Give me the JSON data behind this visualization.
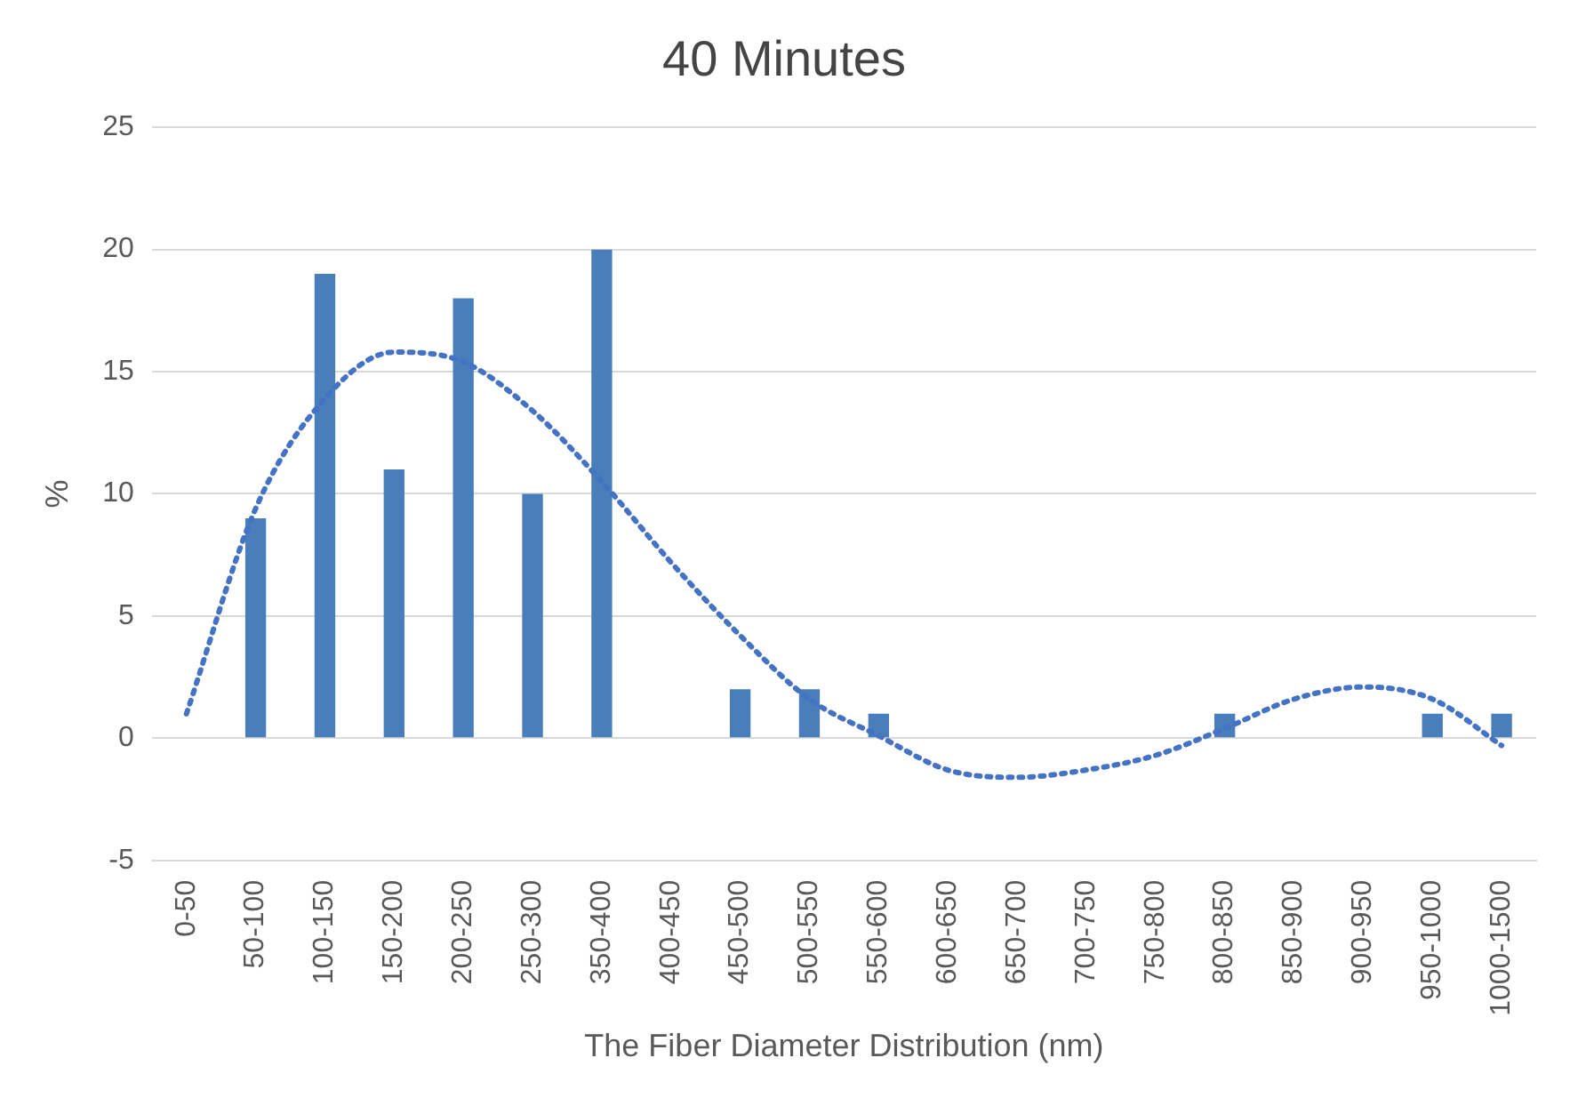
{
  "chart_data": {
    "type": "bar",
    "title": "40 Minutes",
    "xlabel": "The Fiber Diameter Distribution (nm)",
    "ylabel": "%",
    "categories": [
      "0-50",
      "50-100",
      "100-150",
      "150-200",
      "200-250",
      "250-300",
      "350-400",
      "400-450",
      "450-500",
      "500-550",
      "550-600",
      "600-650",
      "650-700",
      "700-750",
      "750-800",
      "800-850",
      "850-900",
      "900-950",
      "950-1000",
      "1000-1500"
    ],
    "series": [
      {
        "color": "#4a7ebb",
        "values": [
          0,
          9,
          19,
          11,
          18,
          10,
          20,
          0,
          2,
          2,
          1,
          0,
          0,
          0,
          0,
          1,
          0,
          0,
          1,
          1
        ]
      },
      {
        "type": "line",
        "color": "#4472c4",
        "line_style": "dotted",
        "marker": "none",
        "values": [
          1.0,
          9.4,
          13.9,
          15.8,
          15.4,
          13.4,
          10.5,
          7.2,
          4.2,
          1.6,
          0.1,
          -1.3,
          -1.6,
          -1.3,
          -0.7,
          0.4,
          1.6,
          2.1,
          1.6,
          -0.3
        ]
      }
    ],
    "ylim": [
      -5,
      25
    ],
    "yticks": [
      -5,
      0,
      5,
      10,
      15,
      20,
      25
    ],
    "grid": "y",
    "legend": false
  }
}
